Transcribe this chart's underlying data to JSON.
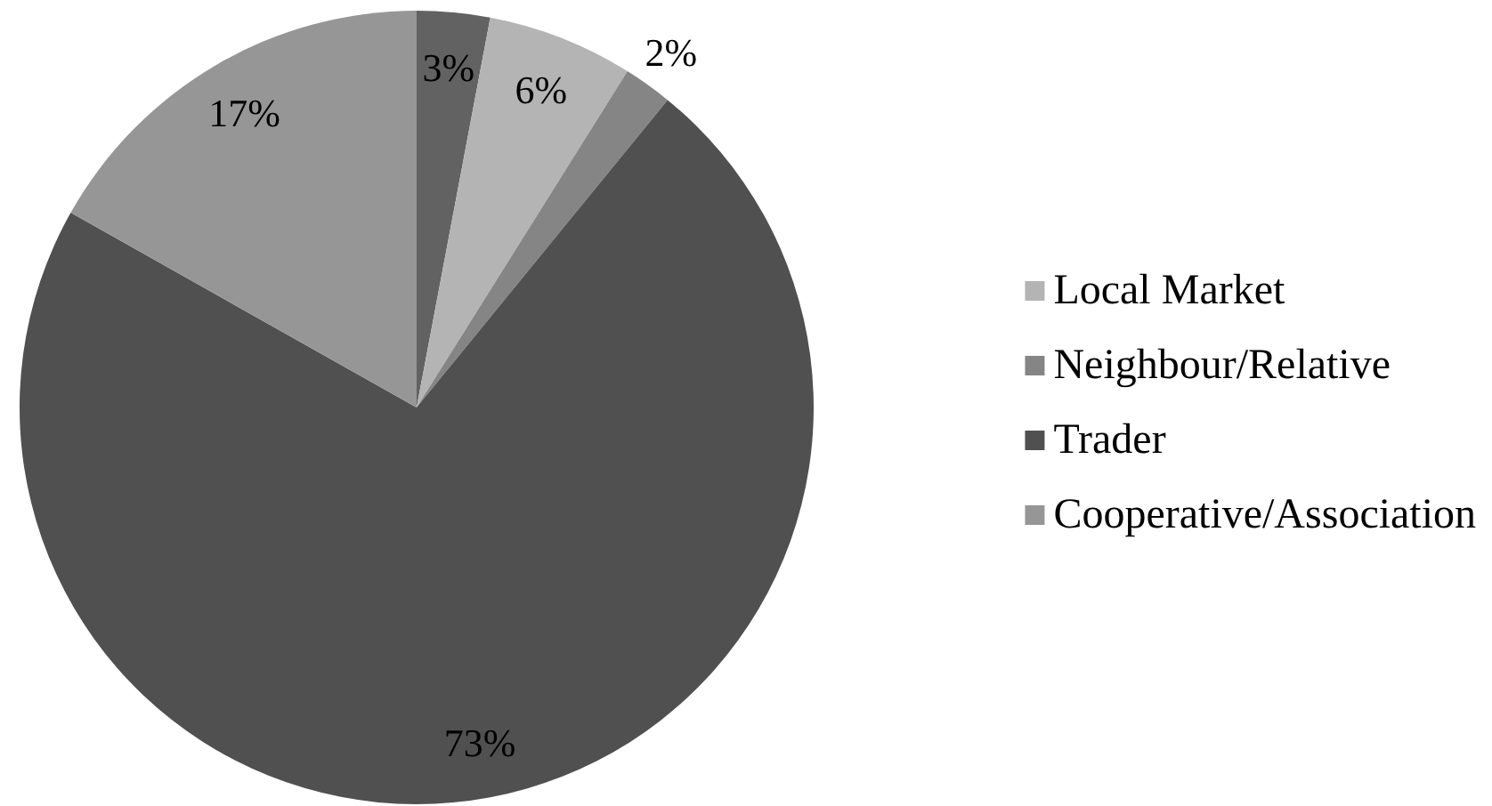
{
  "chart_data": {
    "type": "pie",
    "categories": [
      null,
      "Local Market",
      "Neighbour/Relative",
      "Trader",
      "Cooperative/Association"
    ],
    "values": [
      3,
      6,
      2,
      73,
      17
    ],
    "colors": [
      "#626262",
      "#b4b4b4",
      "#858585",
      "#505050",
      "#969696"
    ],
    "value_labels": [
      "3%",
      "6%",
      "2%",
      "73%",
      "17%"
    ],
    "legend": "right"
  }
}
